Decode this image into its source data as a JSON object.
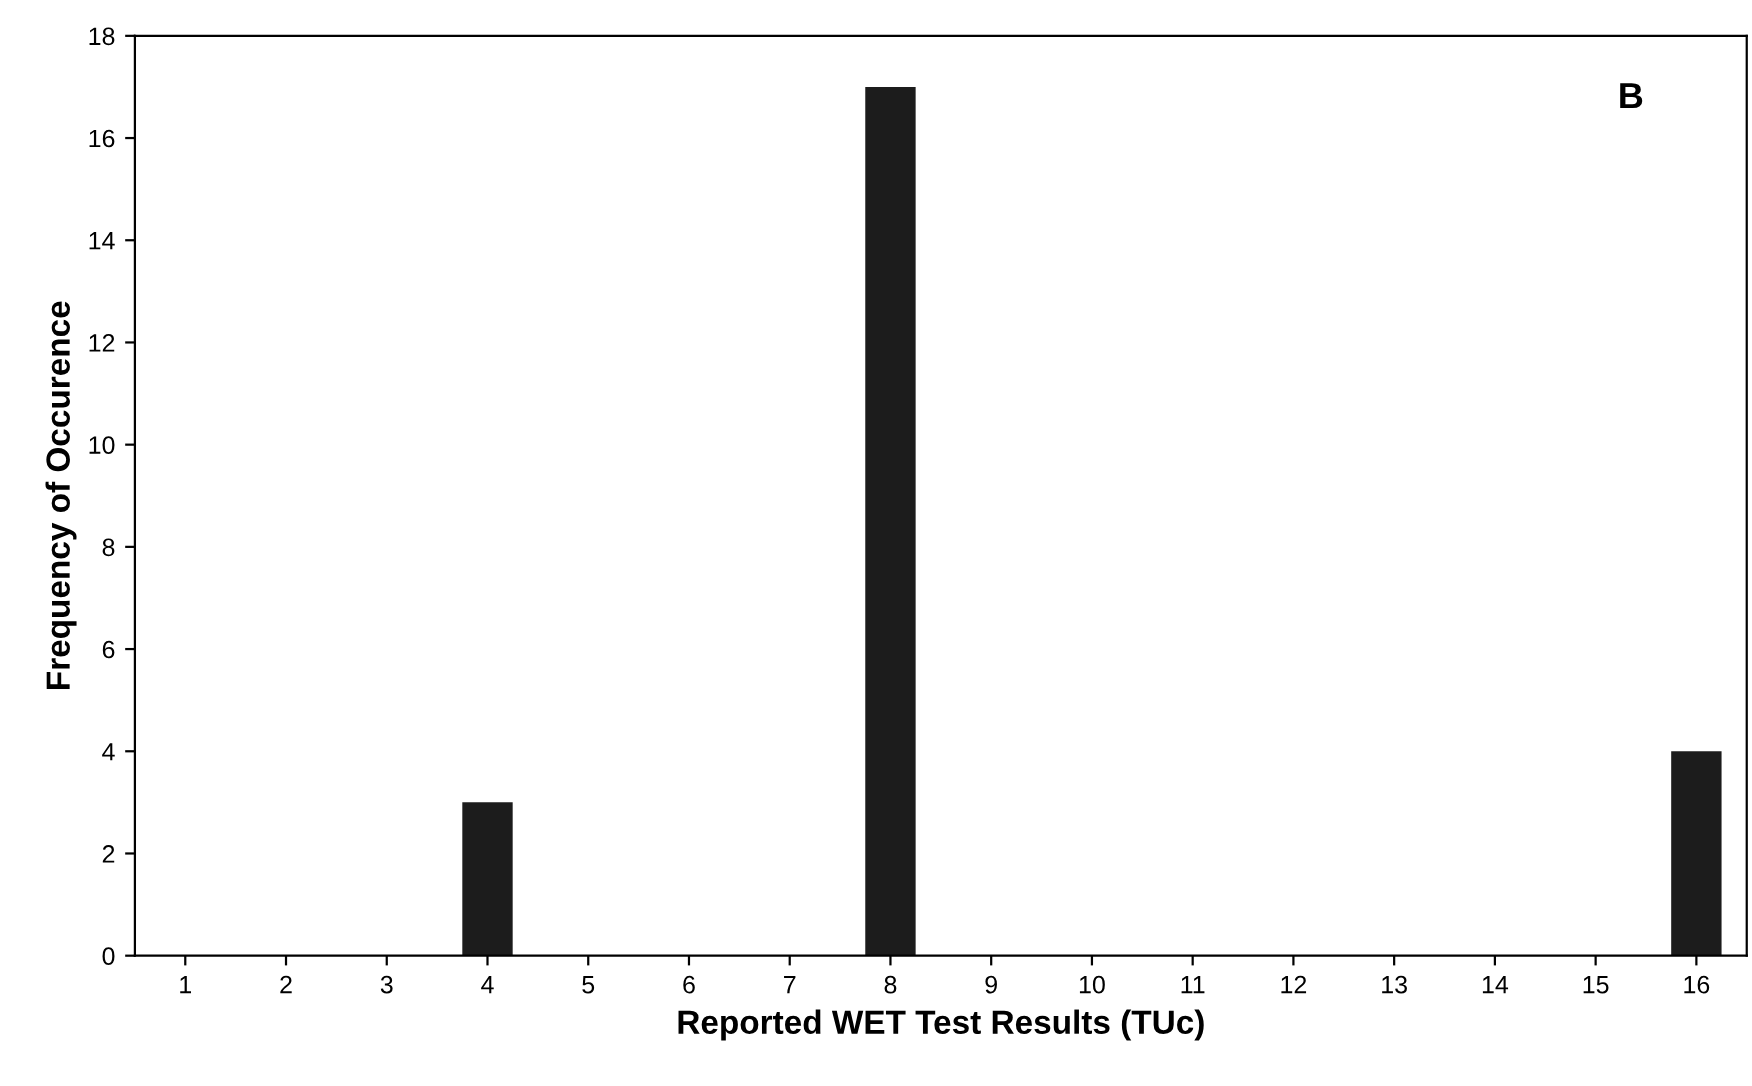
{
  "chart_data": {
    "type": "bar",
    "xlabel": "Reported WET Test Results (TUc)",
    "ylabel": "Frequency of Occurence",
    "categories": [
      "1",
      "2",
      "3",
      "4",
      "5",
      "6",
      "7",
      "8",
      "9",
      "10",
      "11",
      "12",
      "13",
      "14",
      "15",
      "16"
    ],
    "values": [
      0,
      0,
      0,
      3,
      0,
      0,
      0,
      17,
      0,
      0,
      0,
      0,
      0,
      0,
      0,
      4
    ],
    "color": "#1c1c1c",
    "ylim": [
      0,
      18
    ],
    "yticks": [
      0,
      2,
      4,
      6,
      8,
      10,
      12,
      14,
      16,
      18
    ],
    "annotations": [
      "B"
    ]
  }
}
